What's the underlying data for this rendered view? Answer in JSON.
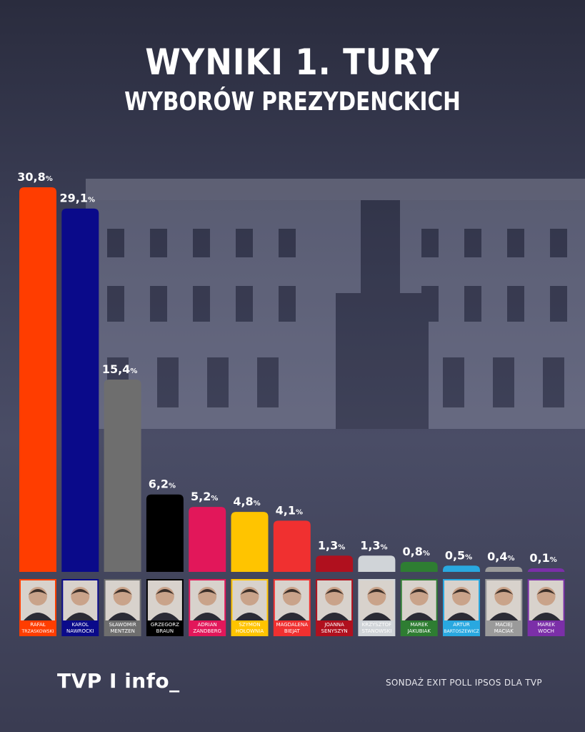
{
  "header": {
    "title": "WYNIKI 1. TURY",
    "subtitle": "WYBORÓW PREZYDENCKICH"
  },
  "footer": {
    "logo": "TVP I info_",
    "source": "SONDAŻ EXIT POLL IPSOS DLA TVP"
  },
  "chart_data": {
    "type": "bar",
    "categories": [
      "RAFAŁ TRZASKOWSKI",
      "KAROL NAWROCKI",
      "SŁAWOMIR MENTZEN",
      "GRZEGORZ BRAUN",
      "ADRIAN ZANDBERG",
      "SZYMON HOŁOWNIA",
      "MAGDALENA BIEJAT",
      "JOANNA SENYSZYN",
      "KRZYSZTOF STANOWSKI",
      "MAREK JAKUBIAK",
      "ARTUR BARTOSZEWICZ",
      "MACIEJ MACIAK",
      "MAREK WOCH"
    ],
    "name_lines": [
      [
        "RAFAŁ",
        "TRZASKOWSKI"
      ],
      [
        "KAROL",
        "NAWROCKI"
      ],
      [
        "SŁAWOMIR",
        "MENTZEN"
      ],
      [
        "GRZEGORZ",
        "BRAUN"
      ],
      [
        "ADRIAN",
        "ZANDBERG"
      ],
      [
        "SZYMON",
        "HOŁOWNIA"
      ],
      [
        "MAGDALENA",
        "BIEJAT"
      ],
      [
        "JOANNA",
        "SENYSZYN"
      ],
      [
        "KRZYSZTOF",
        "STANOWSKI"
      ],
      [
        "MAREK",
        "JAKUBIAK"
      ],
      [
        "ARTUR",
        "BARTOSZEWICZ"
      ],
      [
        "MACIEJ",
        "MACIAK"
      ],
      [
        "MAREK",
        "WOCH"
      ]
    ],
    "values": [
      30.8,
      29.1,
      15.4,
      6.2,
      5.2,
      4.8,
      4.1,
      1.3,
      1.3,
      0.8,
      0.5,
      0.4,
      0.1
    ],
    "value_labels": [
      "30,8",
      "29,1",
      "15,4",
      "6,2",
      "5,2",
      "4,8",
      "4,1",
      "1,3",
      "1,3",
      "0,8",
      "0,5",
      "0,4",
      "0,1"
    ],
    "unit": "%",
    "colors": [
      "#ff3d00",
      "#0a0a8a",
      "#6e6e6e",
      "#000000",
      "#e2175a",
      "#ffc400",
      "#f03030",
      "#b0101e",
      "#d0d4d8",
      "#2e7d32",
      "#29a8e0",
      "#9a9a9a",
      "#7b2fa8"
    ],
    "ylim": [
      0,
      30.8
    ]
  }
}
